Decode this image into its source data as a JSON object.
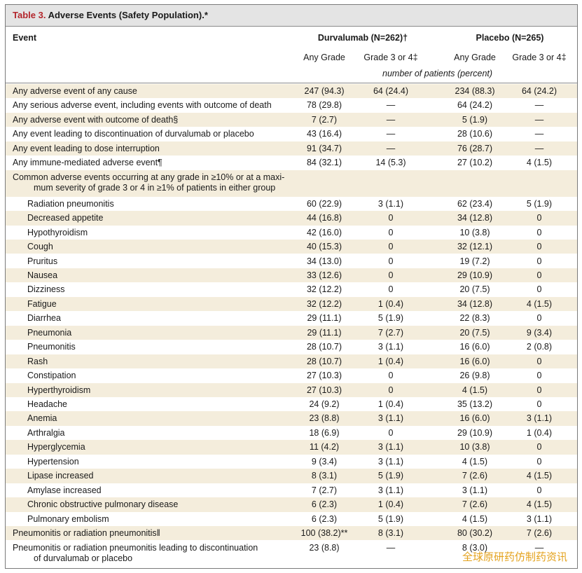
{
  "table": {
    "title_label": "Table 3.",
    "title_text": "Adverse Events (Safety Population).*",
    "event_header": "Event",
    "group1": "Durvalumab (N=262)†",
    "group2": "Placebo (N=265)",
    "subheaders": [
      "Any Grade",
      "Grade 3 or 4‡",
      "Any Grade",
      "Grade 3 or 4‡"
    ],
    "units": "number of patients (percent)",
    "rows": [
      {
        "label": "Any adverse event of any cause",
        "v": [
          "247 (94.3)",
          "64 (24.4)",
          "234 (88.3)",
          "64 (24.2)"
        ]
      },
      {
        "label": "Any serious adverse event, including events with outcome of death",
        "v": [
          "78 (29.8)",
          "—",
          "64 (24.2)",
          "—"
        ]
      },
      {
        "label": "Any adverse event with outcome of death§",
        "v": [
          "7 (2.7)",
          "—",
          "5 (1.9)",
          "—"
        ]
      },
      {
        "label": "Any event leading to discontinuation of durvalumab or placebo",
        "v": [
          "43 (16.4)",
          "—",
          "28 (10.6)",
          "—"
        ]
      },
      {
        "label": "Any event leading to dose interruption",
        "v": [
          "91 (34.7)",
          "—",
          "76 (28.7)",
          "—"
        ]
      },
      {
        "label": "Any immune-mediated adverse event¶",
        "v": [
          "84 (32.1)",
          "14 (5.3)",
          "27 (10.2)",
          "4 (1.5)"
        ]
      },
      {
        "label1": "Common adverse events occurring at any grade in ≥10% or at a maxi-",
        "label2": "mum severity of grade 3 or 4 in ≥1% of patients in either group"
      },
      {
        "label": "Radiation pneumonitis",
        "v": [
          "60 (22.9)",
          "3 (1.1)",
          "62 (23.4)",
          "5 (1.9)"
        ]
      },
      {
        "label": "Decreased appetite",
        "v": [
          "44 (16.8)",
          "0",
          "34 (12.8)",
          "0"
        ]
      },
      {
        "label": "Hypothyroidism",
        "v": [
          "42 (16.0)",
          "0",
          "10 (3.8)",
          "0"
        ]
      },
      {
        "label": "Cough",
        "v": [
          "40 (15.3)",
          "0",
          "32 (12.1)",
          "0"
        ]
      },
      {
        "label": "Pruritus",
        "v": [
          "34 (13.0)",
          "0",
          "19 (7.2)",
          "0"
        ]
      },
      {
        "label": "Nausea",
        "v": [
          "33 (12.6)",
          "0",
          "29 (10.9)",
          "0"
        ]
      },
      {
        "label": "Dizziness",
        "v": [
          "32 (12.2)",
          "0",
          "20 (7.5)",
          "0"
        ]
      },
      {
        "label": "Fatigue",
        "v": [
          "32 (12.2)",
          "1 (0.4)",
          "34 (12.8)",
          "4 (1.5)"
        ]
      },
      {
        "label": "Diarrhea",
        "v": [
          "29 (11.1)",
          "5 (1.9)",
          "22 (8.3)",
          "0"
        ]
      },
      {
        "label": "Pneumonia",
        "v": [
          "29 (11.1)",
          "7 (2.7)",
          "20 (7.5)",
          "9 (3.4)"
        ]
      },
      {
        "label": "Pneumonitis",
        "v": [
          "28 (10.7)",
          "3 (1.1)",
          "16 (6.0)",
          "2 (0.8)"
        ]
      },
      {
        "label": "Rash",
        "v": [
          "28 (10.7)",
          "1 (0.4)",
          "16 (6.0)",
          "0"
        ]
      },
      {
        "label": "Constipation",
        "v": [
          "27 (10.3)",
          "0",
          "26 (9.8)",
          "0"
        ]
      },
      {
        "label": "Hyperthyroidism",
        "v": [
          "27 (10.3)",
          "0",
          "4 (1.5)",
          "0"
        ]
      },
      {
        "label": "Headache",
        "v": [
          "24 (9.2)",
          "1 (0.4)",
          "35 (13.2)",
          "0"
        ]
      },
      {
        "label": "Anemia",
        "v": [
          "23 (8.8)",
          "3 (1.1)",
          "16 (6.0)",
          "3 (1.1)"
        ]
      },
      {
        "label": "Arthralgia",
        "v": [
          "18 (6.9)",
          "0",
          "29 (10.9)",
          "1 (0.4)"
        ]
      },
      {
        "label": "Hyperglycemia",
        "v": [
          "11 (4.2)",
          "3 (1.1)",
          "10 (3.8)",
          "0"
        ]
      },
      {
        "label": "Hypertension",
        "v": [
          "9 (3.4)",
          "3 (1.1)",
          "4 (1.5)",
          "0"
        ]
      },
      {
        "label": "Lipase increased",
        "v": [
          "8 (3.1)",
          "5 (1.9)",
          "7 (2.6)",
          "4 (1.5)"
        ]
      },
      {
        "label": "Amylase increased",
        "v": [
          "7 (2.7)",
          "3 (1.1)",
          "3 (1.1)",
          "0"
        ]
      },
      {
        "label": "Chronic obstructive pulmonary disease",
        "v": [
          "6 (2.3)",
          "1 (0.4)",
          "7 (2.6)",
          "4 (1.5)"
        ]
      },
      {
        "label": "Pulmonary embolism",
        "v": [
          "6 (2.3)",
          "5 (1.9)",
          "4 (1.5)",
          "3 (1.1)"
        ]
      },
      {
        "label": "Pneumonitis or radiation pneumonitis‖",
        "v": [
          "100 (38.2)**",
          "8 (3.1)",
          "80 (30.2)",
          "7 (2.6)"
        ]
      },
      {
        "label1": "Pneumonitis or radiation pneumonitis leading to discontinuation",
        "label2": "of durvalumab or placebo",
        "v": [
          "23 (8.8)",
          "—",
          "8 (3.0)",
          "—"
        ]
      }
    ]
  },
  "watermark": "全球原研药仿制药资讯",
  "colors": {
    "title_label": "#b3262c",
    "row_shade": "#f4eddc",
    "header_bg": "#e4e4e4",
    "watermark": "#e4a21c"
  }
}
